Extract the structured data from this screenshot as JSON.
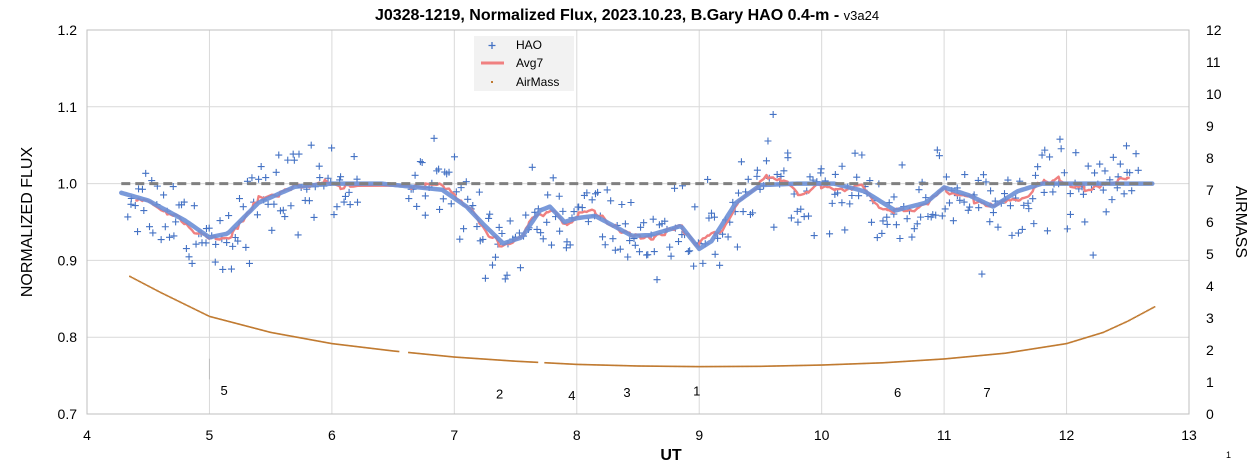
{
  "chart_data": {
    "type": "scatter",
    "title": "J0328-1219, Normalized Flux, 2023.10.23, B.Gary HAO 0.4-m - ",
    "title_suffix": "v3a24",
    "xlabel": "UT",
    "ylabel": "NORMALIZED FLUX",
    "y2label": "AIRMASS",
    "xlim": [
      4,
      13
    ],
    "ylim": [
      0.7,
      1.2
    ],
    "y2lim": [
      0,
      12
    ],
    "x_ticks": [
      "4",
      "5",
      "6",
      "7",
      "8",
      "9",
      "10",
      "11",
      "12",
      "13"
    ],
    "y_ticks": [
      "0.7",
      "0.8",
      "0.9",
      "1.0",
      "1.1",
      "1.2"
    ],
    "y2_ticks": [
      "0",
      "1",
      "2",
      "3",
      "4",
      "5",
      "6",
      "7",
      "8",
      "9",
      "10",
      "11",
      "12"
    ],
    "grid": true,
    "legend_position": "top-center",
    "corner_label": "1",
    "series": [
      {
        "name": "HAO",
        "marker": "plus",
        "color": "#4472c4",
        "x_range": [
          4.33,
          12.58
        ],
        "count": 430,
        "mean": 0.97,
        "scatter_sd": 0.045
      },
      {
        "name": "Avg7",
        "marker": "line",
        "color": "#f08080"
      },
      {
        "name": "AirMass",
        "marker": "dot",
        "color": "#c07a30",
        "x_range": [
          4.35,
          12.72
        ],
        "key_points": [
          [
            4.35,
            4.3
          ],
          [
            4.6,
            3.8
          ],
          [
            5.0,
            3.05
          ],
          [
            5.5,
            2.55
          ],
          [
            6.0,
            2.2
          ],
          [
            6.5,
            1.97
          ],
          [
            7.0,
            1.78
          ],
          [
            7.5,
            1.65
          ],
          [
            8.0,
            1.55
          ],
          [
            8.5,
            1.5
          ],
          [
            9.0,
            1.48
          ],
          [
            9.5,
            1.49
          ],
          [
            10.0,
            1.53
          ],
          [
            10.5,
            1.6
          ],
          [
            11.0,
            1.72
          ],
          [
            11.5,
            1.9
          ],
          [
            12.0,
            2.2
          ],
          [
            12.3,
            2.55
          ],
          [
            12.5,
            2.9
          ],
          [
            12.72,
            3.35
          ]
        ]
      },
      {
        "name": "",
        "marker": "thick-line",
        "color": "#6b8fd6",
        "key_points": [
          [
            4.28,
            0.988
          ],
          [
            4.5,
            0.978
          ],
          [
            4.8,
            0.952
          ],
          [
            5.0,
            0.93
          ],
          [
            5.15,
            0.935
          ],
          [
            5.4,
            0.975
          ],
          [
            5.7,
            0.996
          ],
          [
            6.0,
            1.0
          ],
          [
            6.4,
            1.0
          ],
          [
            6.9,
            0.992
          ],
          [
            7.1,
            0.97
          ],
          [
            7.25,
            0.945
          ],
          [
            7.4,
            0.922
          ],
          [
            7.55,
            0.93
          ],
          [
            7.7,
            0.965
          ],
          [
            7.78,
            0.97
          ],
          [
            7.9,
            0.95
          ],
          [
            8.0,
            0.955
          ],
          [
            8.15,
            0.958
          ],
          [
            8.3,
            0.945
          ],
          [
            8.45,
            0.932
          ],
          [
            8.6,
            0.933
          ],
          [
            8.75,
            0.94
          ],
          [
            8.85,
            0.945
          ],
          [
            9.0,
            0.915
          ],
          [
            9.1,
            0.925
          ],
          [
            9.3,
            0.975
          ],
          [
            9.5,
            0.998
          ],
          [
            9.8,
            1.0
          ],
          [
            10.1,
            1.0
          ],
          [
            10.35,
            0.99
          ],
          [
            10.6,
            0.965
          ],
          [
            10.85,
            0.975
          ],
          [
            11.0,
            0.995
          ],
          [
            11.2,
            0.985
          ],
          [
            11.4,
            0.97
          ],
          [
            11.6,
            0.99
          ],
          [
            11.8,
            1.0
          ],
          [
            12.7,
            1.0
          ]
        ]
      },
      {
        "name": "",
        "marker": "dashed-line",
        "color": "#808080",
        "x": [
          4.28,
          12.72
        ],
        "y": [
          1.0,
          1.0
        ]
      }
    ],
    "annotations": [
      {
        "text": "5",
        "x": 5.12,
        "y": 0.725
      },
      {
        "text": "2",
        "x": 7.37,
        "y": 0.72
      },
      {
        "text": "4",
        "x": 7.96,
        "y": 0.718
      },
      {
        "text": "3",
        "x": 8.41,
        "y": 0.722
      },
      {
        "text": "1",
        "x": 8.98,
        "y": 0.724
      },
      {
        "text": "6",
        "x": 10.62,
        "y": 0.722
      },
      {
        "text": "7",
        "x": 11.35,
        "y": 0.722
      }
    ]
  }
}
